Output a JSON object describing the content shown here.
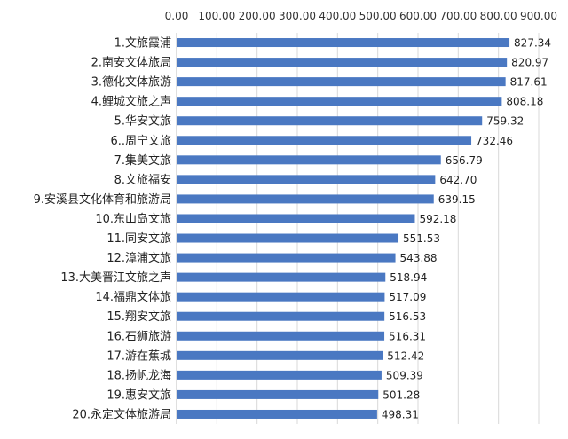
{
  "chart_data": {
    "type": "bar",
    "orientation": "horizontal",
    "title": "",
    "xlabel": "",
    "ylabel": "",
    "x_axis_position": "top",
    "xlim": [
      0,
      900
    ],
    "x_ticks": [
      "0.00",
      "100.00",
      "200.00",
      "300.00",
      "400.00",
      "500.00",
      "600.00",
      "700.00",
      "800.00",
      "900.00"
    ],
    "grid": true,
    "legend": "none",
    "bar_color": "#4a78c2",
    "categories": [
      "1.文旅霞浦",
      "2.南安文体旅局",
      "3.德化文体旅游",
      "4.鲤城文旅之声",
      "5.华安文旅",
      "6..周宁文旅",
      "7.集美文旅",
      "8.文旅福安",
      "9.安溪县文化体育和旅游局",
      "10.东山岛文旅",
      "11.同安文旅",
      "12.漳浦文旅",
      "13.大美晋江文旅之声",
      "14.福鼎文体旅",
      "15.翔安文旅",
      "16.石狮旅游",
      "17.游在蕉城",
      "18.扬帆龙海",
      "19.惠安文旅",
      "20.永定文体旅游局"
    ],
    "values": [
      827.34,
      820.97,
      817.61,
      808.18,
      759.32,
      732.46,
      656.79,
      642.7,
      639.15,
      592.18,
      551.53,
      543.88,
      518.94,
      517.09,
      516.53,
      516.31,
      512.42,
      509.39,
      501.28,
      498.31
    ],
    "value_labels": [
      "827.34",
      "820.97",
      "817.61",
      "808.18",
      "759.32",
      "732.46",
      "656.79",
      "642.70",
      "639.15",
      "592.18",
      "551.53",
      "543.88",
      "518.94",
      "517.09",
      "516.53",
      "516.31",
      "512.42",
      "509.39",
      "501.28",
      "498.31"
    ]
  }
}
